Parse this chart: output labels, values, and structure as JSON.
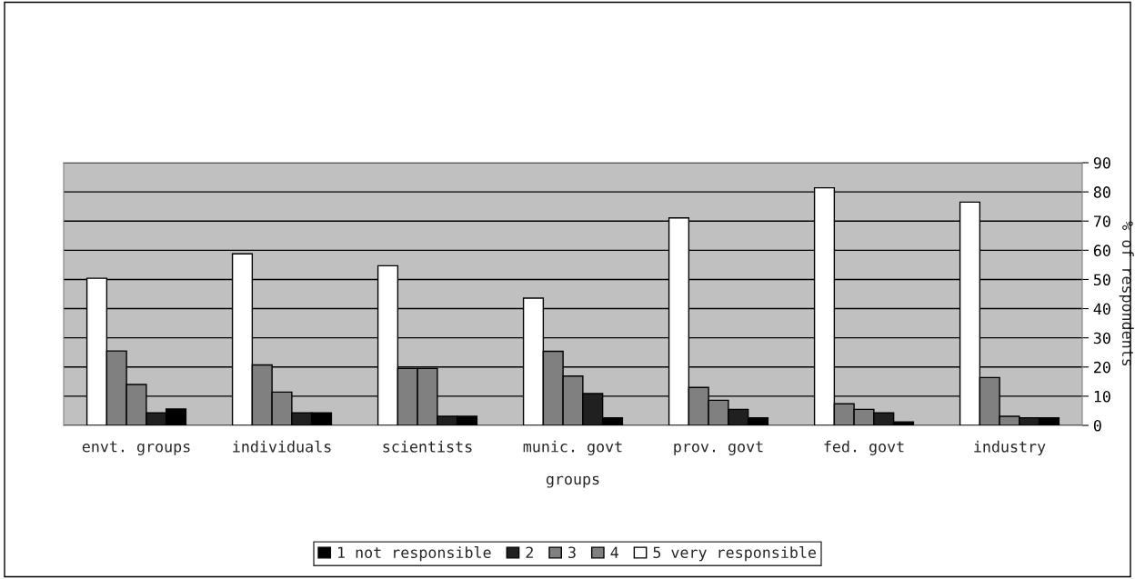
{
  "chart_data": {
    "type": "bar",
    "categories": [
      "envt. groups",
      "individuals",
      "scientists",
      "munic. govt",
      "prov. govt",
      "fed. govt",
      "industry"
    ],
    "series": [
      {
        "name": "5 very responsible",
        "color": "#ffffff",
        "values": [
          50.4,
          58.8,
          54.7,
          43.6,
          71.1,
          81.4,
          76.5
        ]
      },
      {
        "name": "4",
        "color": "#808080",
        "values": [
          25.5,
          20.7,
          19.5,
          25.4,
          13,
          7.4,
          16.4
        ]
      },
      {
        "name": "3",
        "color": "#808080",
        "values": [
          14,
          11.4,
          19.5,
          16.9,
          8.6,
          5.5,
          3.1
        ]
      },
      {
        "name": "2",
        "color": "#202020",
        "values": [
          4.3,
          4.3,
          3.1,
          10.9,
          5.5,
          4.3,
          2.6
        ]
      },
      {
        "name": "1 not responsible",
        "color": "#000000",
        "values": [
          5.6,
          4.3,
          3.1,
          2.6,
          2.6,
          1.2,
          2.6
        ]
      }
    ],
    "xlabel": "groups",
    "ylabel": "% of respondents",
    "ylim": [
      0,
      90
    ],
    "yticks": [
      0,
      10,
      20,
      30,
      40,
      50,
      60,
      70,
      80,
      90
    ],
    "grid": "y",
    "legend": "bottom"
  }
}
